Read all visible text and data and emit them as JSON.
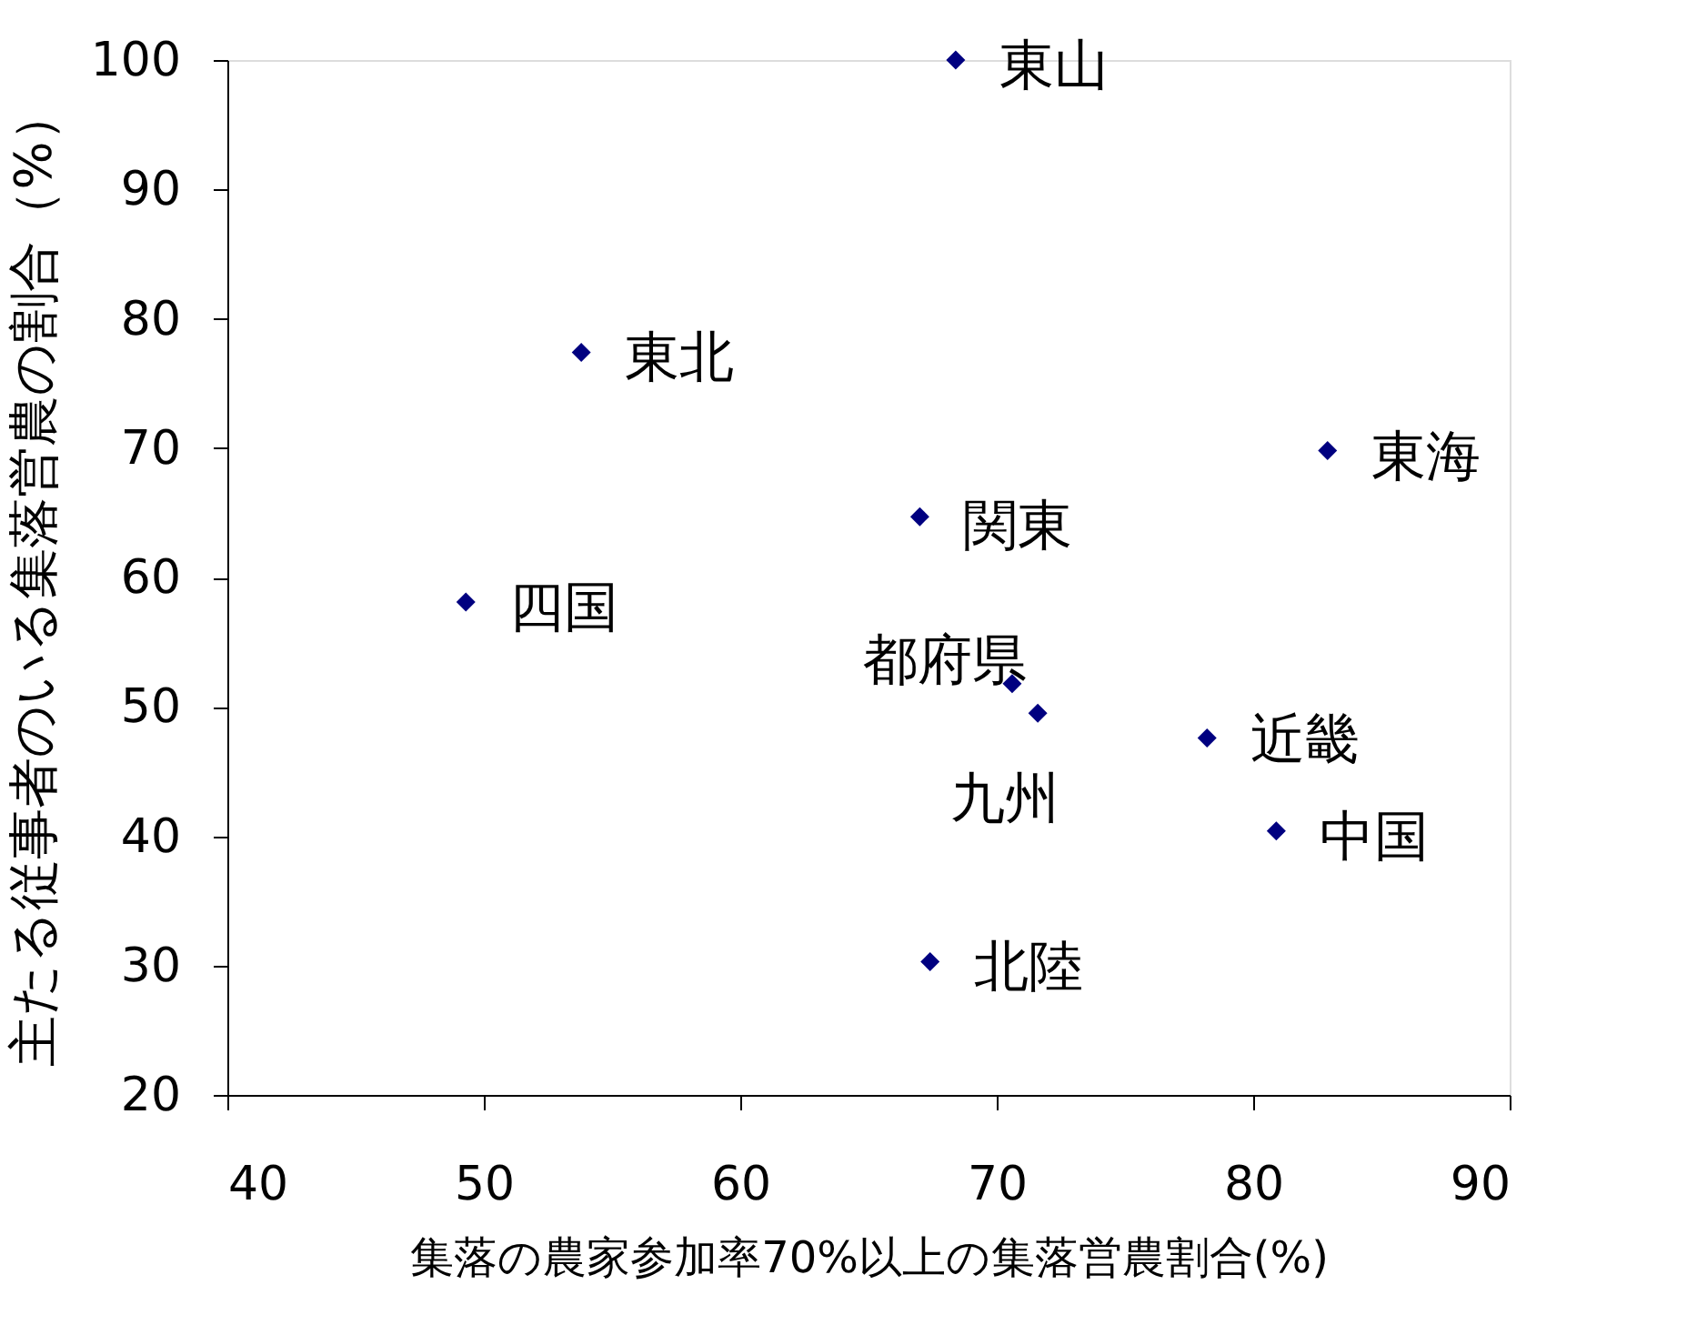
{
  "chart_data": {
    "type": "scatter",
    "xlabel": "集落の農家参加率70%以上の集落営農割合(%)",
    "ylabel": "主たる従事者のいる集落営農の割合（%）",
    "x": [
      68.4,
      53.8,
      82.9,
      67.0,
      49.3,
      70.6,
      71.6,
      78.2,
      80.9,
      67.4
    ],
    "series": [
      {
        "color": "#000080",
        "values": [
          100,
          77.4,
          69.8,
          64.7,
          58.1,
          51.8,
          49.5,
          47.6,
          40.4,
          30.3
        ]
      }
    ],
    "annotations": [
      {
        "text": "東山",
        "x": 68.4,
        "y": 100
      },
      {
        "text": "東北",
        "x": 53.8,
        "y": 77.4
      },
      {
        "text": "東海",
        "x": 82.9,
        "y": 69.8
      },
      {
        "text": "関東",
        "x": 67.0,
        "y": 64.7
      },
      {
        "text": "四国",
        "x": 49.3,
        "y": 58.1
      },
      {
        "text": "都府県",
        "x": 70.6,
        "y": 51.8
      },
      {
        "text": "九州",
        "x": 71.6,
        "y": 49.5
      },
      {
        "text": "近畿",
        "x": 78.2,
        "y": 47.6
      },
      {
        "text": "中国",
        "x": 80.9,
        "y": 40.4
      },
      {
        "text": "北陸",
        "x": 67.4,
        "y": 30.3
      }
    ],
    "xlim": [
      40,
      90
    ],
    "xticks": [
      40,
      50,
      60,
      70,
      80,
      90
    ],
    "ylim": [
      20,
      100
    ],
    "yticks": [
      20,
      30,
      40,
      50,
      60,
      70,
      80,
      90,
      100
    ],
    "marker": "diamond",
    "grid": false,
    "legend": false
  }
}
